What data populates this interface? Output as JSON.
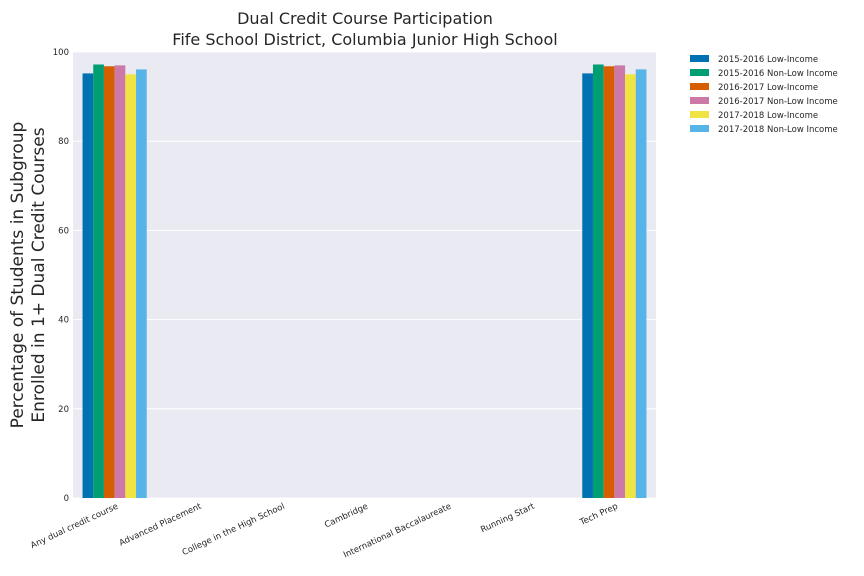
{
  "chart_data": {
    "type": "bar",
    "title": "Dual Credit Course Participation",
    "subtitle": "Fife School District, Columbia Junior High School",
    "ylabel_line1": "Percentage of Students in Subgroup",
    "ylabel_line2": "Enrolled in 1+ Dual Credit Courses",
    "xlabel": "",
    "ylim": [
      0,
      100
    ],
    "yticks": [
      "0",
      "20",
      "40",
      "60",
      "80",
      "100"
    ],
    "yticks_values": [
      0,
      20,
      40,
      60,
      80,
      100
    ],
    "grid": true,
    "legend_position": "outside-top-right",
    "categories": [
      "Any dual credit course",
      "Advanced Placement",
      "College in the High School",
      "Cambridge",
      "International Baccalaureate",
      "Running Start",
      "Tech Prep"
    ],
    "series": [
      {
        "name": "2015-2016 Low-Income",
        "color": "#0072b2",
        "values": [
          95.2,
          0,
          0,
          0,
          0,
          0,
          95.2
        ]
      },
      {
        "name": "2015-2016 Non-Low Income",
        "color": "#009e73",
        "values": [
          97.2,
          0,
          0,
          0,
          0,
          0,
          97.2
        ]
      },
      {
        "name": "2016-2017 Low-Income",
        "color": "#d55e00",
        "values": [
          96.8,
          0,
          0,
          0,
          0,
          0,
          96.8
        ]
      },
      {
        "name": "2016-2017 Non-Low Income",
        "color": "#cc79a7",
        "values": [
          97.0,
          0,
          0,
          0,
          0,
          0,
          97.0
        ]
      },
      {
        "name": "2017-2018 Low-Income",
        "color": "#f0e442",
        "values": [
          95.0,
          0,
          0,
          0,
          0,
          0,
          95.0
        ]
      },
      {
        "name": "2017-2018 Non-Low Income",
        "color": "#56b4e9",
        "values": [
          96.1,
          0,
          0,
          0,
          0,
          0,
          96.1
        ]
      }
    ],
    "plot_background": "#eaeaf2",
    "grid_color": "#ffffff"
  }
}
